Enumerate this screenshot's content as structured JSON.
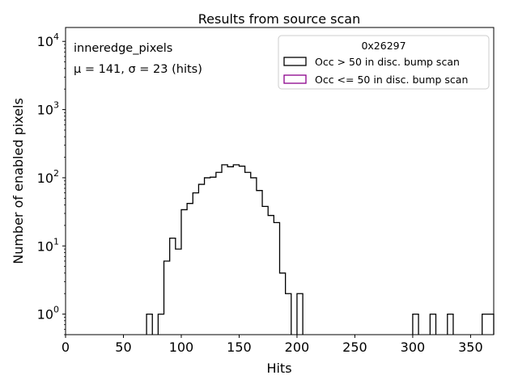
{
  "chart_data": {
    "type": "histogram",
    "title": "Results from source scan",
    "xlabel": "Hits",
    "ylabel": "Number of enabled pixels",
    "xlim": [
      0,
      370
    ],
    "ylim": [
      0.5,
      16000
    ],
    "yscale": "log",
    "grid": false,
    "legend_placement": "top-right",
    "x_ticks": [
      {
        "value": 0,
        "label": "0"
      },
      {
        "value": 50,
        "label": "50"
      },
      {
        "value": 100,
        "label": "100"
      },
      {
        "value": 150,
        "label": "150"
      },
      {
        "value": 200,
        "label": "200"
      },
      {
        "value": 250,
        "label": "250"
      },
      {
        "value": 300,
        "label": "300"
      },
      {
        "value": 350,
        "label": "350"
      }
    ],
    "y_ticks": [
      {
        "value": 1,
        "base": "10",
        "exp": "0"
      },
      {
        "value": 10,
        "base": "10",
        "exp": "1"
      },
      {
        "value": 100,
        "base": "10",
        "exp": "2"
      },
      {
        "value": 1000,
        "base": "10",
        "exp": "3"
      },
      {
        "value": 10000,
        "base": "10",
        "exp": "4"
      }
    ],
    "legend": {
      "title": "0x26297",
      "entries": [
        {
          "label": "Occ > 50 in disc. bump scan",
          "color": "#000000"
        },
        {
          "label": "Occ <= 50 in disc. bump scan",
          "color": "#8b008b"
        }
      ]
    },
    "annotations": {
      "line1": "inneredge_pixels",
      "line2": "μ = 141, σ = 23 (hits)"
    },
    "series": [
      {
        "color": "#000000",
        "bins": [
          {
            "lo": 70,
            "hi": 75,
            "value": 1
          },
          {
            "lo": 80,
            "hi": 85,
            "value": 1
          },
          {
            "lo": 85,
            "hi": 90,
            "value": 6
          },
          {
            "lo": 90,
            "hi": 95,
            "value": 13
          },
          {
            "lo": 95,
            "hi": 100,
            "value": 9
          },
          {
            "lo": 100,
            "hi": 105,
            "value": 34
          },
          {
            "lo": 105,
            "hi": 110,
            "value": 42
          },
          {
            "lo": 110,
            "hi": 115,
            "value": 60
          },
          {
            "lo": 115,
            "hi": 120,
            "value": 80
          },
          {
            "lo": 120,
            "hi": 125,
            "value": 100
          },
          {
            "lo": 125,
            "hi": 130,
            "value": 102
          },
          {
            "lo": 130,
            "hi": 135,
            "value": 120
          },
          {
            "lo": 135,
            "hi": 140,
            "value": 155
          },
          {
            "lo": 140,
            "hi": 145,
            "value": 145
          },
          {
            "lo": 145,
            "hi": 150,
            "value": 155
          },
          {
            "lo": 150,
            "hi": 155,
            "value": 148
          },
          {
            "lo": 155,
            "hi": 160,
            "value": 120
          },
          {
            "lo": 160,
            "hi": 165,
            "value": 100
          },
          {
            "lo": 165,
            "hi": 170,
            "value": 65
          },
          {
            "lo": 170,
            "hi": 175,
            "value": 38
          },
          {
            "lo": 175,
            "hi": 180,
            "value": 28
          },
          {
            "lo": 180,
            "hi": 185,
            "value": 22
          },
          {
            "lo": 185,
            "hi": 190,
            "value": 4
          },
          {
            "lo": 190,
            "hi": 195,
            "value": 2
          },
          {
            "lo": 200,
            "hi": 205,
            "value": 2
          },
          {
            "lo": 300,
            "hi": 305,
            "value": 1
          },
          {
            "lo": 315,
            "hi": 320,
            "value": 1
          },
          {
            "lo": 330,
            "hi": 335,
            "value": 1
          },
          {
            "lo": 360,
            "hi": 370,
            "value": 1
          }
        ]
      },
      {
        "color": "#8b008b",
        "bins": []
      }
    ]
  }
}
